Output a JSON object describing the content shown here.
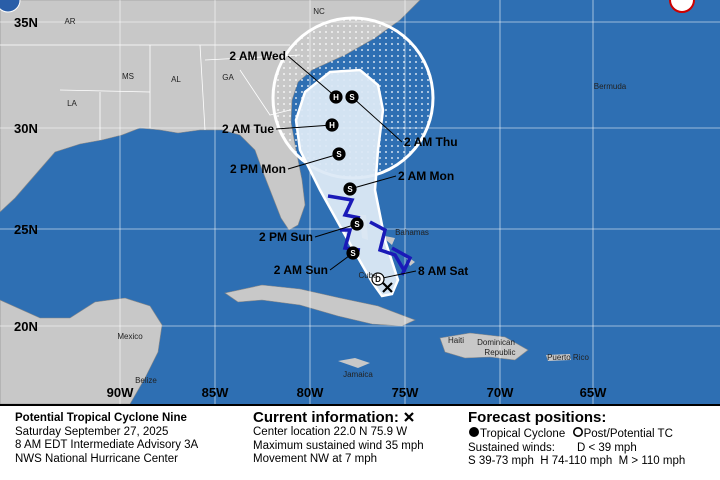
{
  "map": {
    "lat_labels": [
      "35N",
      "30N",
      "25N",
      "20N"
    ],
    "lon_labels": [
      "90W",
      "85W",
      "80W",
      "75W",
      "70W",
      "65W"
    ],
    "places": [
      "NC",
      "AR",
      "MS",
      "AL",
      "GA",
      "LA",
      "Bermuda",
      "Bahamas",
      "Cuba",
      "Mexico",
      "Haiti",
      "Dominican",
      "Republic",
      "Puerto Rico",
      "Jamaica",
      "Belize"
    ],
    "forecast_points": [
      {
        "time": "8 AM Sat",
        "symbol": "D"
      },
      {
        "time": "2 AM Sun",
        "symbol": "S"
      },
      {
        "time": "2 PM Sun",
        "symbol": "S"
      },
      {
        "time": "2 AM Mon",
        "symbol": "S"
      },
      {
        "time": "2 PM Mon",
        "symbol": "S"
      },
      {
        "time": "2 AM Tue",
        "symbol": "H"
      },
      {
        "time": "2 AM Wed",
        "symbol": "H"
      },
      {
        "time": "2 AM Thu",
        "symbol": "S"
      }
    ]
  },
  "footer": {
    "storm": {
      "name": "Potential Tropical Cyclone Nine",
      "date": "Saturday September 27, 2025",
      "advisory": "8 AM EDT Intermediate Advisory 3A",
      "agency": "NWS National Hurricane Center"
    },
    "current": {
      "title": "Current information:",
      "location": "Center location 22.0 N 75.9 W",
      "wind": "Maximum sustained wind 35 mph",
      "movement": "Movement NW at 7 mph"
    },
    "forecast": {
      "title": "Forecast positions:",
      "tropical": "Tropical Cyclone",
      "post": "Post/Potential TC",
      "winds_label": "Sustained winds:",
      "d_range": "D < 39 mph",
      "ranges": "S 39-73 mph  H 74-110 mph  M > 110 mph"
    }
  }
}
